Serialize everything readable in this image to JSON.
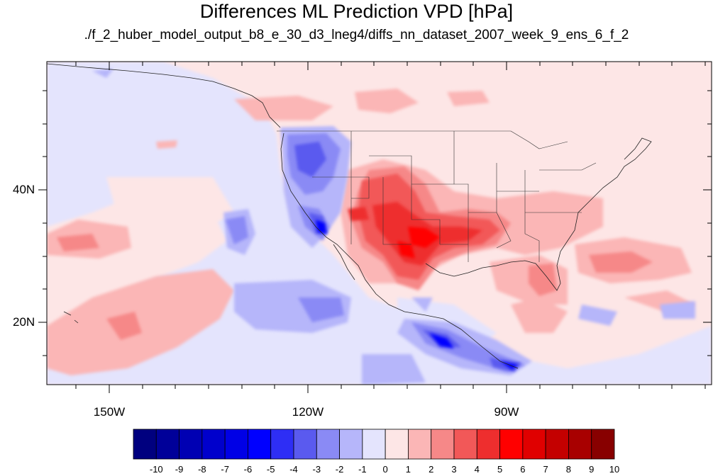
{
  "title": "Differences ML Prediction VPD [hPa]",
  "subtitle": "./f_2_huber_model_output_b8_e_30_d3_lneg4/diffs_nn_dataset_2007_week_9_ens_6_f_2",
  "axes": {
    "lat_labels": [
      "40N",
      "20N"
    ],
    "lon_labels": [
      "150W",
      "120W",
      "90W"
    ]
  },
  "colorbar": {
    "labels": [
      "-10",
      "-9",
      "-8",
      "-7",
      "-6",
      "-5",
      "-4",
      "-3",
      "-2",
      "-1",
      "0",
      "1",
      "2",
      "3",
      "4",
      "5",
      "6",
      "7",
      "8",
      "9",
      "10"
    ],
    "colors": [
      "#00007f",
      "#000099",
      "#0000b3",
      "#0000cc",
      "#0000e6",
      "#0000ff",
      "#2e2ef5",
      "#5a5aef",
      "#8a8af5",
      "#b6b6fa",
      "#e4e4fd",
      "#fde6e6",
      "#fbb6b6",
      "#f68888",
      "#f25858",
      "#ee2e2e",
      "#ff0000",
      "#e00000",
      "#c40000",
      "#a80000",
      "#880000"
    ]
  }
}
